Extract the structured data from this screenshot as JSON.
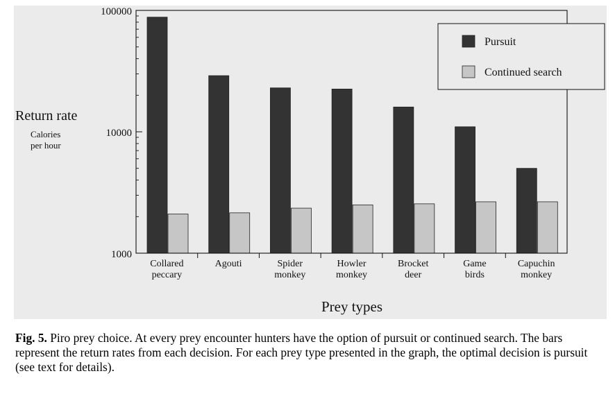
{
  "chart_data": {
    "type": "bar",
    "scale": "log",
    "ylim": [
      1000,
      100000
    ],
    "yticks": [
      "100000",
      "10000",
      "1000"
    ],
    "ytick_values": [
      100000,
      10000,
      1000
    ],
    "ylabel": "Return rate",
    "ylabel_unit_line1": "Calories",
    "ylabel_unit_line2": "per hour",
    "xlabel": "Prey types",
    "categories": [
      [
        "Collared",
        "peccary"
      ],
      [
        "Agouti"
      ],
      [
        "Spider",
        "monkey"
      ],
      [
        "Howler",
        "monkey"
      ],
      [
        "Brocket",
        "deer"
      ],
      [
        "Game",
        "birds"
      ],
      [
        "Capuchin",
        "monkey"
      ]
    ],
    "series": [
      {
        "name": "Pursuit",
        "color": "#333333",
        "values": [
          88000,
          29000,
          23000,
          22500,
          16000,
          11000,
          5000
        ]
      },
      {
        "name": "Continued search",
        "color": "#c6c6c6",
        "values": [
          2100,
          2150,
          2350,
          2500,
          2550,
          2650,
          2650
        ]
      }
    ],
    "legend_position": "top-right",
    "grid": false
  },
  "caption": {
    "label": "Fig. 5.",
    "text": "Piro prey choice. At every prey encounter hunters have the option of pursuit or continued search. The bars represent the return rates from each decision. For each prey type presented in the graph, the optimal decision is pursuit (see text for details)."
  }
}
